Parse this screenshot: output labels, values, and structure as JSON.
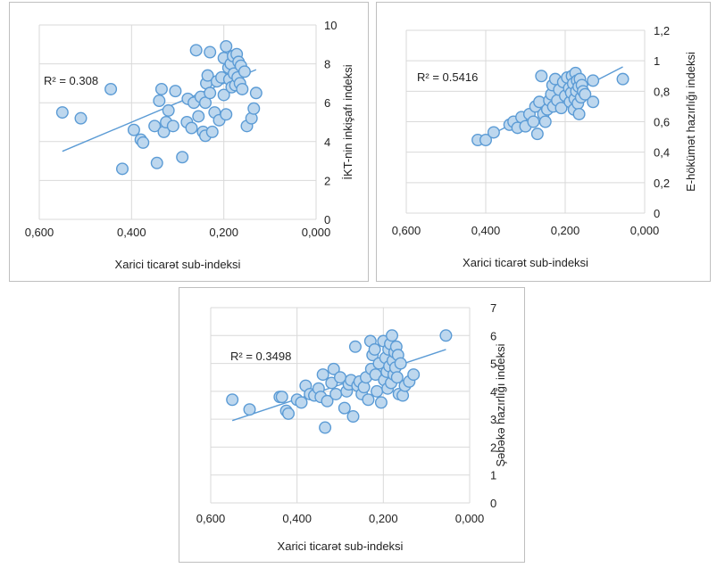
{
  "chart_data": [
    {
      "type": "scatter",
      "title": "",
      "xlabel": "Xarici ticarət sub-indeksi",
      "ylabel": "İKT-nin inkişafı indeksi",
      "xlim": [
        0.6,
        0.0
      ],
      "ylim": [
        0,
        10
      ],
      "x_reversed": true,
      "y_axis_position": "right",
      "xticks": [
        "0,600",
        "0,400",
        "0,200",
        "0,000"
      ],
      "yticks": [
        "0",
        "2",
        "4",
        "6",
        "8",
        "10"
      ],
      "grid": true,
      "annotation": "R² = 0.308",
      "trendline": [
        [
          0.55,
          3.5
        ],
        [
          0.13,
          7.7
        ]
      ],
      "points": [
        [
          0.55,
          5.5
        ],
        [
          0.51,
          5.2
        ],
        [
          0.445,
          6.7
        ],
        [
          0.42,
          2.6
        ],
        [
          0.395,
          4.6
        ],
        [
          0.38,
          4.1
        ],
        [
          0.375,
          3.95
        ],
        [
          0.35,
          4.8
        ],
        [
          0.345,
          2.9
        ],
        [
          0.34,
          6.1
        ],
        [
          0.335,
          6.7
        ],
        [
          0.33,
          4.5
        ],
        [
          0.325,
          5.0
        ],
        [
          0.32,
          5.6
        ],
        [
          0.31,
          4.8
        ],
        [
          0.305,
          6.6
        ],
        [
          0.29,
          3.2
        ],
        [
          0.28,
          5.0
        ],
        [
          0.278,
          6.2
        ],
        [
          0.27,
          4.7
        ],
        [
          0.265,
          6.0
        ],
        [
          0.26,
          8.7
        ],
        [
          0.255,
          5.3
        ],
        [
          0.25,
          6.3
        ],
        [
          0.245,
          4.5
        ],
        [
          0.24,
          4.3
        ],
        [
          0.24,
          6.0
        ],
        [
          0.238,
          7.0
        ],
        [
          0.235,
          7.4
        ],
        [
          0.23,
          8.6
        ],
        [
          0.23,
          6.5
        ],
        [
          0.225,
          4.5
        ],
        [
          0.22,
          5.5
        ],
        [
          0.215,
          7.1
        ],
        [
          0.21,
          5.1
        ],
        [
          0.205,
          7.3
        ],
        [
          0.2,
          8.3
        ],
        [
          0.2,
          6.4
        ],
        [
          0.195,
          8.9
        ],
        [
          0.195,
          5.4
        ],
        [
          0.19,
          7.8
        ],
        [
          0.188,
          7.2
        ],
        [
          0.185,
          8.0
        ],
        [
          0.183,
          6.8
        ],
        [
          0.18,
          8.4
        ],
        [
          0.178,
          7.5
        ],
        [
          0.175,
          6.9
        ],
        [
          0.172,
          8.5
        ],
        [
          0.17,
          7.3
        ],
        [
          0.168,
          8.1
        ],
        [
          0.165,
          7.0
        ],
        [
          0.163,
          7.9
        ],
        [
          0.16,
          6.7
        ],
        [
          0.155,
          7.6
        ],
        [
          0.15,
          4.8
        ],
        [
          0.14,
          5.2
        ],
        [
          0.135,
          5.7
        ],
        [
          0.13,
          6.5
        ]
      ]
    },
    {
      "type": "scatter",
      "title": "",
      "xlabel": "Xarici ticarət sub-indeksi",
      "ylabel": "E-hökümət hazırlığı indeksi",
      "xlim": [
        0.6,
        0.0
      ],
      "ylim": [
        0,
        1.2
      ],
      "x_reversed": true,
      "y_axis_position": "right",
      "xticks": [
        "0,600",
        "0,400",
        "0,200",
        "0,000"
      ],
      "yticks": [
        "0",
        "0,2",
        "0,4",
        "0,6",
        "0,8",
        "1",
        "1,2"
      ],
      "grid": true,
      "annotation": "R² = 0.5416",
      "trendline": [
        [
          0.42,
          0.47
        ],
        [
          0.055,
          0.96
        ]
      ],
      "points": [
        [
          0.42,
          0.48
        ],
        [
          0.4,
          0.48
        ],
        [
          0.38,
          0.53
        ],
        [
          0.34,
          0.58
        ],
        [
          0.33,
          0.6
        ],
        [
          0.32,
          0.56
        ],
        [
          0.31,
          0.63
        ],
        [
          0.3,
          0.57
        ],
        [
          0.29,
          0.65
        ],
        [
          0.28,
          0.6
        ],
        [
          0.275,
          0.7
        ],
        [
          0.27,
          0.52
        ],
        [
          0.265,
          0.73
        ],
        [
          0.26,
          0.9
        ],
        [
          0.255,
          0.65
        ],
        [
          0.25,
          0.6
        ],
        [
          0.245,
          0.68
        ],
        [
          0.24,
          0.74
        ],
        [
          0.235,
          0.78
        ],
        [
          0.232,
          0.84
        ],
        [
          0.23,
          0.7
        ],
        [
          0.225,
          0.88
        ],
        [
          0.22,
          0.74
        ],
        [
          0.215,
          0.81
        ],
        [
          0.21,
          0.69
        ],
        [
          0.205,
          0.86
        ],
        [
          0.2,
          0.77
        ],
        [
          0.195,
          0.89
        ],
        [
          0.19,
          0.82
        ],
        [
          0.188,
          0.73
        ],
        [
          0.185,
          0.79
        ],
        [
          0.183,
          0.9
        ],
        [
          0.18,
          0.85
        ],
        [
          0.178,
          0.68
        ],
        [
          0.176,
          0.75
        ],
        [
          0.174,
          0.92
        ],
        [
          0.172,
          0.8
        ],
        [
          0.17,
          0.87
        ],
        [
          0.168,
          0.72
        ],
        [
          0.166,
          0.83
        ],
        [
          0.165,
          0.65
        ],
        [
          0.163,
          0.88
        ],
        [
          0.16,
          0.76
        ],
        [
          0.158,
          0.84
        ],
        [
          0.155,
          0.8
        ],
        [
          0.15,
          0.78
        ],
        [
          0.13,
          0.87
        ],
        [
          0.13,
          0.73
        ],
        [
          0.055,
          0.88
        ]
      ]
    },
    {
      "type": "scatter",
      "title": "",
      "xlabel": "Xarici ticarət sub-indeksi",
      "ylabel": "Şəbəkə hazırlığı indeksi",
      "xlim": [
        0.6,
        0.0
      ],
      "ylim": [
        0,
        7
      ],
      "x_reversed": true,
      "y_axis_position": "right",
      "xticks": [
        "0,600",
        "0,400",
        "0,200",
        "0,000"
      ],
      "yticks": [
        "0",
        "1",
        "2",
        "3",
        "4",
        "5",
        "6",
        "7"
      ],
      "grid": true,
      "annotation": "R² = 0.3498",
      "trendline": [
        [
          0.55,
          2.95
        ],
        [
          0.055,
          5.5
        ]
      ],
      "points": [
        [
          0.55,
          3.7
        ],
        [
          0.51,
          3.35
        ],
        [
          0.44,
          3.8
        ],
        [
          0.435,
          3.8
        ],
        [
          0.425,
          3.3
        ],
        [
          0.42,
          3.2
        ],
        [
          0.4,
          3.7
        ],
        [
          0.39,
          3.6
        ],
        [
          0.38,
          4.2
        ],
        [
          0.37,
          3.9
        ],
        [
          0.36,
          3.85
        ],
        [
          0.35,
          4.1
        ],
        [
          0.345,
          3.8
        ],
        [
          0.34,
          4.6
        ],
        [
          0.335,
          2.7
        ],
        [
          0.33,
          3.65
        ],
        [
          0.32,
          4.3
        ],
        [
          0.315,
          4.8
        ],
        [
          0.31,
          3.9
        ],
        [
          0.3,
          4.5
        ],
        [
          0.29,
          3.4
        ],
        [
          0.285,
          4.0
        ],
        [
          0.28,
          4.25
        ],
        [
          0.275,
          4.4
        ],
        [
          0.27,
          3.1
        ],
        [
          0.265,
          5.6
        ],
        [
          0.26,
          4.2
        ],
        [
          0.255,
          4.35
        ],
        [
          0.25,
          3.9
        ],
        [
          0.245,
          4.15
        ],
        [
          0.24,
          4.5
        ],
        [
          0.235,
          3.7
        ],
        [
          0.23,
          5.8
        ],
        [
          0.228,
          4.8
        ],
        [
          0.225,
          5.3
        ],
        [
          0.22,
          5.5
        ],
        [
          0.218,
          4.6
        ],
        [
          0.215,
          4.0
        ],
        [
          0.21,
          5.0
        ],
        [
          0.205,
          3.6
        ],
        [
          0.2,
          5.8
        ],
        [
          0.198,
          4.4
        ],
        [
          0.195,
          5.2
        ],
        [
          0.192,
          4.7
        ],
        [
          0.19,
          4.1
        ],
        [
          0.188,
          5.5
        ],
        [
          0.186,
          4.9
        ],
        [
          0.184,
          5.7
        ],
        [
          0.182,
          4.3
        ],
        [
          0.18,
          6.0
        ],
        [
          0.178,
          5.1
        ],
        [
          0.176,
          4.6
        ],
        [
          0.174,
          5.4
        ],
        [
          0.172,
          4.85
        ],
        [
          0.17,
          5.6
        ],
        [
          0.168,
          4.5
        ],
        [
          0.166,
          5.3
        ],
        [
          0.164,
          3.9
        ],
        [
          0.16,
          5.0
        ],
        [
          0.155,
          3.85
        ],
        [
          0.15,
          4.2
        ],
        [
          0.14,
          4.35
        ],
        [
          0.13,
          4.6
        ],
        [
          0.055,
          6.0
        ]
      ]
    }
  ]
}
